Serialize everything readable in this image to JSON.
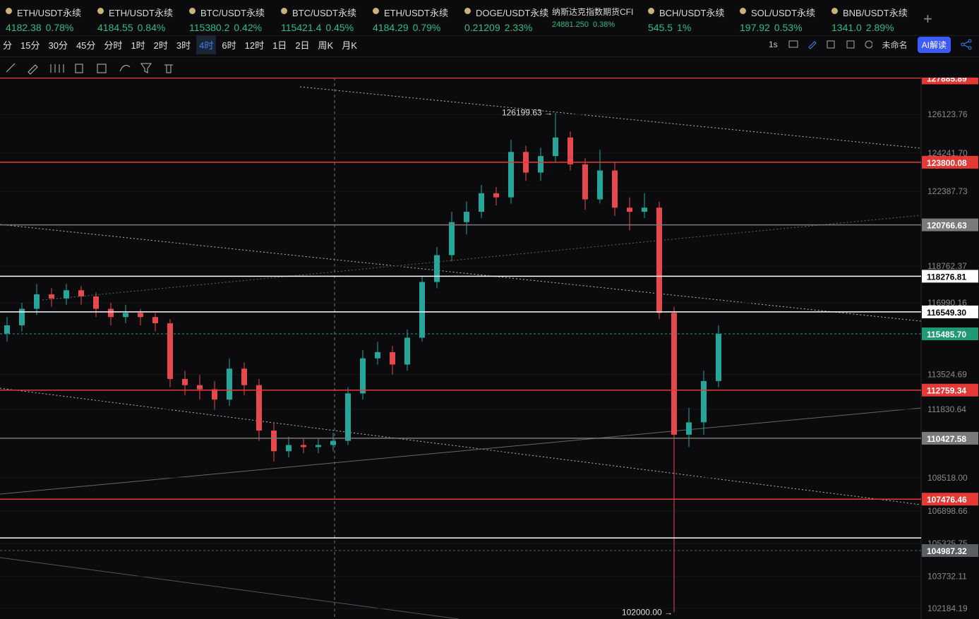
{
  "tickers": [
    {
      "name": "ETH/USDT永续",
      "price": "4182.38",
      "change": "0.78%"
    },
    {
      "name": "ETH/USDT永续",
      "price": "4184.55",
      "change": "0.84%"
    },
    {
      "name": "BTC/USDT永续",
      "price": "115380.2",
      "change": "0.42%"
    },
    {
      "name": "BTC/USDT永续",
      "price": "115421.4",
      "change": "0.45%"
    },
    {
      "name": "ETH/USDT永续",
      "price": "4184.29",
      "change": "0.79%"
    },
    {
      "name": "DOGE/USDT永续",
      "price": "0.21209",
      "change": "2.33%"
    },
    {
      "name": "纳斯达克指数期货CFI",
      "price": "24881.250",
      "change": "0.38%"
    },
    {
      "name": "BCH/USDT永续",
      "price": "545.5",
      "change": "1%"
    },
    {
      "name": "SOL/USDT永续",
      "price": "197.92",
      "change": "0.53%"
    },
    {
      "name": "BNB/USDT永续",
      "price": "1341.0",
      "change": "2.89%"
    }
  ],
  "timeframes": [
    {
      "label": "分"
    },
    {
      "label": "15分"
    },
    {
      "label": "30分"
    },
    {
      "label": "45分"
    },
    {
      "label": "分时"
    },
    {
      "label": "1时"
    },
    {
      "label": "2时"
    },
    {
      "label": "3时"
    },
    {
      "label": "4时",
      "active": true
    },
    {
      "label": "6时"
    },
    {
      "label": "12时"
    },
    {
      "label": "1日"
    },
    {
      "label": "2日"
    },
    {
      "label": "周K"
    },
    {
      "label": "月K"
    }
  ],
  "toolbar_right": {
    "interval": "1s",
    "layout_name": "未命名",
    "ai_button": "AI解读"
  },
  "chart_data": {
    "type": "candlestick",
    "up_color": "#26a69a",
    "down_color": "#e5484d",
    "ylim": [
      101670,
      127900
    ],
    "yticks": [
      126123.76,
      {
        "value": 124241.7,
        "label": "124241.70"
      },
      122387.73,
      118762.37,
      116990.16,
      113524.69,
      111830.64,
      {
        "value": 108518,
        "label": "108518.00"
      },
      106898.66,
      105325.75,
      103732.11,
      102184.19
    ],
    "open": [
      115500,
      115900,
      116700,
      117400,
      117200,
      117600,
      117300,
      116700,
      116300,
      116500,
      116300,
      116000,
      113300,
      113000,
      112800,
      112300,
      113800,
      113000,
      110800,
      109800,
      110100,
      110000,
      110100,
      110300,
      112600,
      114300,
      114600,
      114000,
      115300,
      118000,
      119300,
      120900,
      121400,
      122300,
      122100,
      124300,
      123300,
      124100,
      125000,
      123700,
      122000,
      123400,
      121600,
      121400,
      121600,
      116500,
      110600,
      111200,
      113200
    ],
    "high": [
      116300,
      117000,
      117900,
      117700,
      117900,
      117800,
      117500,
      117000,
      116900,
      116700,
      116500,
      116200,
      113700,
      113500,
      113200,
      114300,
      114100,
      113300,
      111200,
      110500,
      110400,
      110400,
      110700,
      112900,
      114700,
      115100,
      114900,
      115700,
      118300,
      119700,
      121400,
      121900,
      122700,
      122600,
      124900,
      124600,
      124500,
      126199.63,
      125300,
      124000,
      124400,
      123800,
      122100,
      122300,
      121900,
      116800,
      111900,
      113700,
      115900
    ],
    "low": [
      115100,
      115600,
      116400,
      116800,
      116900,
      116900,
      116300,
      115900,
      116000,
      115900,
      115600,
      112900,
      112500,
      112300,
      111800,
      112000,
      112500,
      110300,
      109300,
      109500,
      109700,
      109700,
      109800,
      110100,
      112300,
      114000,
      113500,
      113700,
      115100,
      117700,
      119000,
      120300,
      121100,
      121700,
      121800,
      122900,
      122900,
      123800,
      123400,
      121500,
      121800,
      121200,
      120500,
      121100,
      116200,
      102000,
      110000,
      110600,
      112900
    ],
    "close": [
      115900,
      116700,
      117400,
      117200,
      117600,
      117300,
      116700,
      116300,
      116500,
      116300,
      116000,
      113300,
      113000,
      112800,
      112300,
      113800,
      113000,
      110800,
      109800,
      110100,
      110000,
      110100,
      110300,
      112600,
      114300,
      114600,
      114000,
      115300,
      118000,
      119300,
      120900,
      121400,
      122300,
      122100,
      124300,
      123300,
      124100,
      125000,
      123700,
      122000,
      123400,
      121600,
      121400,
      121600,
      116500,
      110600,
      111200,
      113200,
      115485.7
    ],
    "levels": [
      {
        "value": 127885.89,
        "color": "#e53935"
      },
      {
        "value": 123800.08,
        "color": "#e53935"
      },
      {
        "value": 120766.63,
        "color": "#7a7a7a"
      },
      {
        "value": 118276.81,
        "color": "#ffffff"
      },
      {
        "value": 116549.3,
        "label": "116549.30",
        "color": "#ffffff"
      },
      {
        "value": 115485.7,
        "label": "115485.70",
        "color": "#1f9a74",
        "dashed": true
      },
      {
        "value": 112759.34,
        "color": "#e53935"
      },
      {
        "value": 110427.58,
        "color": "#7a7a7a"
      },
      {
        "value": 107476.46,
        "color": "#e53935"
      },
      {
        "value": 105600,
        "color": "#ffffff",
        "show_label": false
      },
      {
        "value": 104987.32,
        "color": "#5a5f66",
        "dashed": true
      }
    ],
    "high_label": "126199.63 →",
    "low_label": "102000.00 →"
  }
}
